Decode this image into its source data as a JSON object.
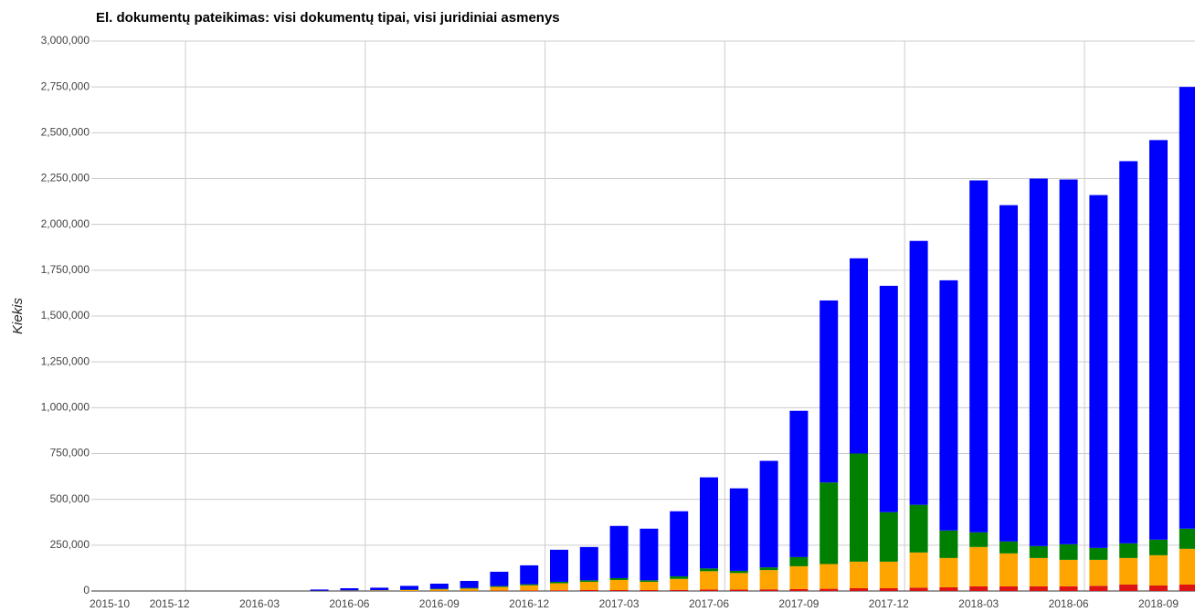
{
  "chart_data": {
    "type": "stacked_bar",
    "title": "El. dokumentų pateikimas: visi dokumentų tipai, visi juridiniai asmenys",
    "y_label": "Kiekis",
    "categories": [
      "2015-10",
      null,
      "2015-12",
      null,
      null,
      "2016-03",
      null,
      null,
      "2016-06",
      null,
      null,
      "2016-09",
      null,
      null,
      "2016-12",
      null,
      null,
      "2017-03",
      null,
      null,
      "2017-06",
      null,
      null,
      "2017-09",
      null,
      null,
      "2017-12",
      null,
      null,
      "2018-03",
      null,
      null,
      "2018-06",
      null,
      null,
      "2018-09",
      null
    ],
    "series": [
      {
        "color": "#dc1414",
        "values": [
          0,
          0,
          0,
          0,
          0,
          0,
          0,
          0,
          0,
          0,
          0,
          1000,
          1000,
          2000,
          3000,
          4000,
          5000,
          5000,
          5000,
          6000,
          8000,
          8000,
          9000,
          10000,
          12000,
          15000,
          15000,
          18000,
          20000,
          25000,
          25000,
          25000,
          25000,
          28000,
          35000,
          30000,
          35000
        ]
      },
      {
        "color": "#ffa500",
        "values": [
          0,
          0,
          0,
          0,
          0,
          0,
          0,
          1000,
          2000,
          3000,
          5000,
          8000,
          12000,
          20000,
          28000,
          38000,
          45000,
          55000,
          45000,
          60000,
          100000,
          90000,
          105000,
          125000,
          135000,
          145000,
          145000,
          192000,
          160000,
          215000,
          180000,
          155000,
          145000,
          142000,
          145000,
          165000,
          195000
        ]
      },
      {
        "color": "#008000",
        "values": [
          0,
          0,
          0,
          0,
          0,
          0,
          0,
          500,
          1000,
          1000,
          2000,
          3000,
          4000,
          5000,
          6000,
          8000,
          8000,
          10000,
          8000,
          14000,
          15000,
          12000,
          15000,
          50000,
          445000,
          590000,
          270000,
          260000,
          150000,
          80000,
          65000,
          65000,
          85000,
          65000,
          80000,
          85000,
          110000
        ]
      },
      {
        "color": "#0000ff",
        "values": [
          0,
          0,
          0,
          0,
          0,
          0,
          0,
          6500,
          12000,
          14000,
          21000,
          28000,
          38000,
          78000,
          103000,
          175000,
          182000,
          285000,
          282000,
          355000,
          497000,
          450000,
          581000,
          798000,
          993000,
          1065000,
          1235000,
          1440000,
          1365000,
          1920000,
          1835000,
          2005000,
          1990000,
          1925000,
          2085000,
          2180000,
          2410000
        ]
      }
    ],
    "ylim": [
      0,
      3000000
    ],
    "yticks": [
      0,
      {
        "value": 250000,
        "label": "250,000"
      },
      {
        "value": 500000,
        "label": "500,000"
      },
      {
        "value": 750000,
        "label": "750,000"
      },
      {
        "value": 1000000,
        "label": "1,000,000"
      },
      {
        "value": 1250000,
        "label": "1,250,000"
      },
      {
        "value": 1500000,
        "label": "1,500,000"
      },
      {
        "value": 1750000,
        "label": "1,750,000"
      },
      {
        "value": 2000000,
        "label": "2,000,000"
      },
      {
        "value": 2250000,
        "label": "2,250,000"
      },
      {
        "value": 2500000,
        "label": "2,500,000"
      },
      {
        "value": 2750000,
        "label": "2,750,000"
      },
      {
        "value": 3000000,
        "label": "3,000,000"
      }
    ],
    "grid": true
  }
}
